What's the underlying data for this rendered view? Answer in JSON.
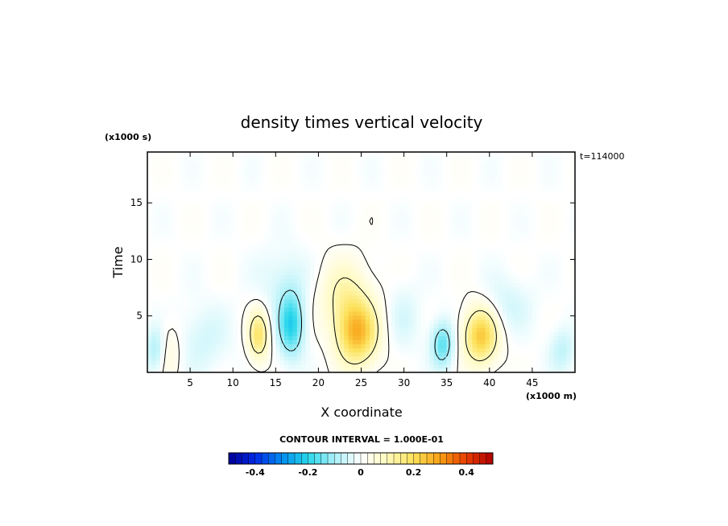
{
  "chart_data": {
    "type": "heatmap",
    "title": "density times vertical velocity",
    "xlabel": "X coordinate",
    "ylabel": "Time",
    "x_unit": "(x1000 m)",
    "y_unit": "(x1000 s)",
    "time_label": "t=114000",
    "xlim": [
      0,
      50
    ],
    "ylim": [
      0,
      19.5
    ],
    "x_ticks": [
      5,
      10,
      15,
      20,
      25,
      30,
      35,
      40,
      45
    ],
    "y_ticks": [
      5,
      10,
      15
    ],
    "contour_interval_label": "CONTOUR INTERVAL = 1.000E-01",
    "contour_levels": [
      -0.1,
      0,
      0.1
    ],
    "colorbar": {
      "range": [
        -0.5,
        0.5
      ],
      "ticks": [
        -0.4,
        -0.2,
        0,
        0.2,
        0.4
      ],
      "tick_labels": [
        "-0.4",
        "-0.2",
        "0",
        "0.2",
        "0.4"
      ]
    },
    "features": [
      {
        "x": 1,
        "y": 2,
        "value": -0.1,
        "sx": 1.2,
        "sy": 2
      },
      {
        "x": 2.5,
        "y": 2,
        "value": 0.06,
        "sx": 1.5,
        "sy": 2.5
      },
      {
        "x": 6.5,
        "y": 3,
        "value": -0.05,
        "sx": 3,
        "sy": 3
      },
      {
        "x": 13,
        "y": 3.3,
        "value": 0.18,
        "sx": 1.2,
        "sy": 2.2
      },
      {
        "x": 16.8,
        "y": 4.2,
        "value": -0.2,
        "sx": 1.5,
        "sy": 2.8
      },
      {
        "x": 16,
        "y": 8,
        "value": -0.05,
        "sx": 3,
        "sy": 3
      },
      {
        "x": 24.5,
        "y": 3.5,
        "value": 0.26,
        "sx": 2.4,
        "sy": 2.8
      },
      {
        "x": 23,
        "y": 7,
        "value": 0.1,
        "sx": 3,
        "sy": 3
      },
      {
        "x": 30,
        "y": 5,
        "value": -0.04,
        "sx": 2,
        "sy": 3
      },
      {
        "x": 34.5,
        "y": 2.5,
        "value": -0.16,
        "sx": 1.3,
        "sy": 2
      },
      {
        "x": 39,
        "y": 3.3,
        "value": 0.24,
        "sx": 2,
        "sy": 2.5
      },
      {
        "x": 42,
        "y": 6,
        "value": -0.05,
        "sx": 3,
        "sy": 2.5
      },
      {
        "x": 48.5,
        "y": 2,
        "value": -0.07,
        "sx": 1.5,
        "sy": 2
      }
    ]
  }
}
